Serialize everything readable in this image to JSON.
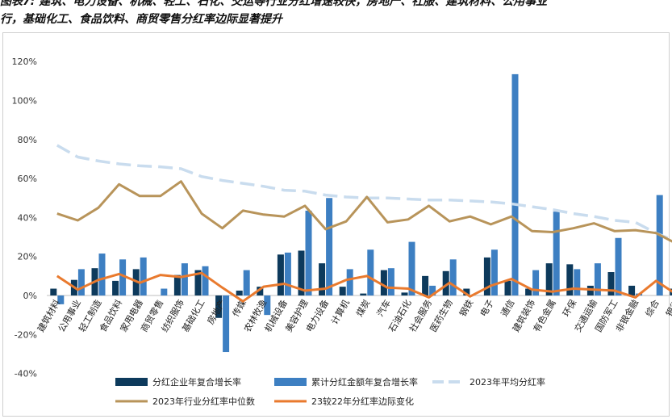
{
  "title_lines": [
    "图表7: 建筑、电力设备、机械、轻工、石化、交运等行业分红增速较快，房地产、社服、建筑材料、公用事业",
    "行，基础化工、食品饮料、商贸零售分红率边际显著提升"
  ],
  "chart_data": {
    "type": "bar",
    "categories": [
      "建筑材料",
      "公用事业",
      "轻工制造",
      "食品饮料",
      "家用电器",
      "商贸零售",
      "纺织服饰",
      "基础化工",
      "房地产",
      "传媒",
      "农林牧渔",
      "机械设备",
      "美容护理",
      "电力设备",
      "计算机",
      "煤炭",
      "汽车",
      "石油石化",
      "社会服务",
      "医药生物",
      "钢铁",
      "电子",
      "通信",
      "建筑装饰",
      "有色金属",
      "环保",
      "交通运输",
      "国防军工",
      "非银金融",
      "综合",
      "银行"
    ],
    "ylim": [
      -0.4,
      1.2
    ],
    "yticks": [
      -0.4,
      -0.2,
      0,
      0.2,
      0.4,
      0.6,
      0.8,
      1.0,
      1.2
    ],
    "ytick_labels": [
      "-40%",
      "-20%",
      "0%",
      "20%",
      "40%",
      "60%",
      "80%",
      "100%",
      "120%"
    ],
    "series": [
      {
        "name": "分红企业年复合增长率",
        "type": "bar",
        "color": "#0d3a5c",
        "values": [
          0.035,
          0.08,
          0.14,
          0.075,
          0.135,
          0.0,
          0.105,
          0.13,
          -0.115,
          0.025,
          0.045,
          0.21,
          0.23,
          0.165,
          0.045,
          0.01,
          0.13,
          0.015,
          0.1,
          0.125,
          0.035,
          0.195,
          0.075,
          0.035,
          0.165,
          0.16,
          0.05,
          0.12,
          0.05,
          0.0,
          0.035
        ]
      },
      {
        "name": "累计分红金额年复合增长率",
        "type": "bar",
        "color": "#3d7fc2",
        "values": [
          -0.045,
          0.135,
          0.215,
          0.185,
          0.195,
          0.035,
          0.165,
          0.15,
          -0.29,
          0.13,
          -0.1,
          0.22,
          0.435,
          0.5,
          0.135,
          0.235,
          0.14,
          0.275,
          0.05,
          0.185,
          0.0,
          0.235,
          1.135,
          0.13,
          0.43,
          0.135,
          0.165,
          0.295,
          0.01,
          0.515,
          0.065
        ]
      },
      {
        "name": "2023年平均分红率",
        "type": "line",
        "style": "dashed",
        "color": "#c9dcee",
        "values": [
          0.77,
          0.71,
          0.69,
          0.675,
          0.665,
          0.66,
          0.65,
          0.61,
          0.59,
          0.575,
          0.56,
          0.54,
          0.535,
          0.515,
          0.505,
          0.5,
          0.5,
          0.495,
          0.49,
          0.49,
          0.485,
          0.48,
          0.47,
          0.455,
          0.44,
          0.42,
          0.405,
          0.385,
          0.375,
          0.32,
          0.275
        ]
      },
      {
        "name": "2023年行业分红率中位数",
        "type": "line",
        "color": "#b8945a",
        "values": [
          0.42,
          0.385,
          0.45,
          0.57,
          0.51,
          0.51,
          0.585,
          0.42,
          0.345,
          0.435,
          0.415,
          0.405,
          0.46,
          0.34,
          0.38,
          0.505,
          0.375,
          0.39,
          0.46,
          0.38,
          0.405,
          0.365,
          0.405,
          0.33,
          0.325,
          0.345,
          0.37,
          0.33,
          0.335,
          0.32,
          0.265
        ]
      },
      {
        "name": "23较22年分红率边际变化",
        "type": "line",
        "color": "#e97a2e",
        "values": [
          0.1,
          0.03,
          0.08,
          0.11,
          0.065,
          0.105,
          0.095,
          0.115,
          0.04,
          -0.03,
          0.045,
          0.06,
          0.025,
          0.035,
          0.08,
          0.1,
          0.04,
          0.035,
          -0.01,
          0.065,
          -0.005,
          0.05,
          0.085,
          0.03,
          0.02,
          0.035,
          0.03,
          0.025,
          -0.01,
          0.075,
          0.005
        ]
      }
    ],
    "legend_position": "bottom",
    "grid": false
  }
}
